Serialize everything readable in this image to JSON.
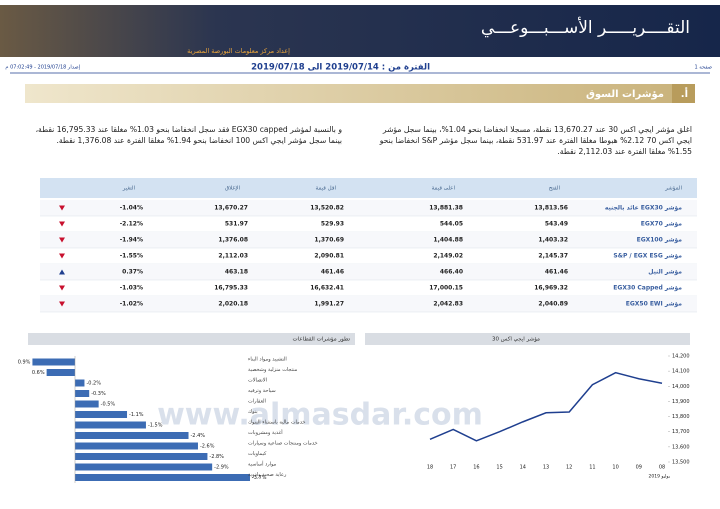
{
  "header": {
    "title": "التقــــريـــــر الأســـبـــوعـــي",
    "subtitle": "إعداد مركز معلومات البورصة المصرية",
    "page": "صفحة 1",
    "issued": "إصدار 2019/07/18 - 07:02:49 م",
    "period": "الفترة من : 2019/07/14 الى 2019/07/18"
  },
  "section": {
    "number": "أ.",
    "title": "مؤشرات السوق"
  },
  "paragraphs": [
    "اغلق مؤشر ايجي اكس 30 عند 13,670.27 نقطة، مسجلا انخفاضا بنحو 1.04%، بينما سجل مؤشر ايجي اكس 70 2.12% هبوطا مغلقا الفترة عند 531.97 نقطة، بينما سجل مؤشر S&P انخفاضا بنحو 1.55% مغلقا الفترة عند 2,112.03 نقطة.",
    "و بالنسبة لمؤشر EGX30 capped فقد سجل انخفاضا بنحو 1.03% مغلقا عند 16,795.33 نقطة، بينما سجل مؤشر ايجي اكس 100 انخفاضا بنحو 1.94% مغلقا الفترة عند 1,376.08 نقطة."
  ],
  "table": {
    "columns": [
      "المؤشر",
      "الفتح",
      "اعلى قيمة",
      "اقل قيمة",
      "الإغلاق",
      "التغير"
    ],
    "rows": [
      [
        "مؤشر EGX30 عائد بالجنيه",
        "13,813.56",
        "13,881.38",
        "13,520.82",
        "13,670.27",
        "-1.04%"
      ],
      [
        "مؤشر EGX70",
        "543.49",
        "544.05",
        "529.93",
        "531.97",
        "-2.12%"
      ],
      [
        "مؤشر EGX100",
        "1,403.32",
        "1,404.88",
        "1,370.69",
        "1,376.08",
        "-1.94%"
      ],
      [
        "مؤشر S&P / EGX ESG",
        "2,145.37",
        "2,149.02",
        "2,090.81",
        "2,112.03",
        "-1.55%"
      ],
      [
        "مؤشر النيل",
        "461.46",
        "466.40",
        "461.46",
        "463.18",
        "0.37%"
      ],
      [
        "مؤشر EGX30 Capped",
        "16,969.32",
        "17,000.15",
        "16,632.41",
        "16,795.33",
        "-1.03%"
      ],
      [
        "مؤشر EGX50 EWI",
        "2,040.89",
        "2,042.83",
        "1,991.27",
        "2,020.18",
        "-1.02%"
      ]
    ],
    "directions": [
      "down",
      "down",
      "down",
      "down",
      "up",
      "down",
      "down"
    ]
  },
  "watermark": "www.almasdar.com",
  "chart_data": [
    {
      "type": "bar",
      "orientation": "horizontal",
      "title": "تطور مؤشرات القطاعات",
      "categories": [
        "التشييد ومواد البناء",
        "منتجات منزلية وشخصية",
        "الاتصالات",
        "سياحة وترفيه",
        "العقارات",
        "بنوك",
        "خدمات مالية باستثناء البنوك",
        "أغذية ومشروبات",
        "خدمات ومنتجات صناعية وسيارات",
        "كيماويات",
        "موارد أساسية",
        "رعاية صحية وادوية"
      ],
      "values": [
        0.9,
        0.6,
        -0.2,
        -0.3,
        -0.5,
        -1.1,
        -1.5,
        -2.4,
        -2.6,
        -2.8,
        -2.9,
        -3.7
      ],
      "value_labels": [
        "0.9%",
        "0.6%",
        "-0.2%",
        "-0.3%",
        "-0.5%",
        "-1.1%",
        "-1.5%",
        "-2.4%",
        "-2.6%",
        "-2.8%",
        "-2.9%",
        "-3.7%"
      ],
      "color": "#3c6cb4"
    },
    {
      "type": "line",
      "title": "مؤشر ايجي اكس 30",
      "xlabel": "يوليو 2019",
      "categories": [
        "18",
        "17",
        "16",
        "15",
        "14",
        "13",
        "12",
        "11",
        "10",
        "09",
        "08"
      ],
      "values": [
        13650,
        13715,
        13640,
        13700,
        13765,
        13825,
        13830,
        14010,
        14090,
        14050,
        14020
      ],
      "ylim": [
        13500,
        14200
      ],
      "yticks": [
        {
          "value": 13500,
          "label": "13,500"
        },
        {
          "value": 13600,
          "label": "13,600"
        },
        {
          "value": 13700,
          "label": "13,700"
        },
        {
          "value": 13800,
          "label": "13,800"
        },
        {
          "value": 13900,
          "label": "13,900"
        },
        {
          "value": 14000,
          "label": "14,000"
        },
        {
          "value": 14100,
          "label": "14,100"
        },
        {
          "value": 14200,
          "label": "14,200"
        }
      ],
      "color": "#1f3f8f"
    }
  ]
}
